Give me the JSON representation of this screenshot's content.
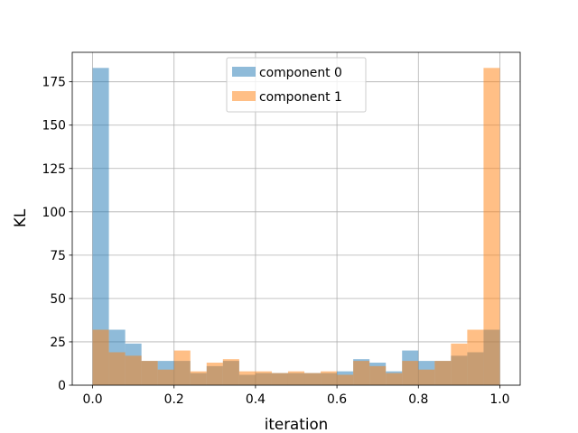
{
  "chart_data": {
    "type": "bar",
    "subtype": "histogram-overlay",
    "title": "",
    "xlabel": "iteration",
    "ylabel": "KL",
    "xlim": [
      -0.05,
      1.05
    ],
    "ylim": [
      0,
      192
    ],
    "grid": true,
    "legend_position": "top-center",
    "bin_edges": [
      0.0,
      0.04,
      0.08,
      0.12,
      0.16,
      0.2,
      0.24,
      0.28,
      0.32,
      0.36,
      0.4,
      0.44,
      0.48,
      0.52,
      0.56,
      0.6,
      0.64,
      0.68,
      0.72,
      0.76,
      0.8,
      0.84,
      0.88,
      0.92,
      0.96,
      1.0
    ],
    "series": [
      {
        "name": "component 0",
        "color": "#1f77b4",
        "values": [
          183,
          32,
          24,
          14,
          14,
          14,
          7,
          11,
          14,
          6,
          7,
          7,
          7,
          7,
          7,
          8,
          15,
          13,
          8,
          20,
          14,
          14,
          17,
          19,
          32
        ]
      },
      {
        "name": "component 1",
        "color": "#ff7f0e",
        "values": [
          32,
          19,
          17,
          14,
          9,
          20,
          8,
          13,
          15,
          8,
          8,
          7,
          8,
          7,
          8,
          6,
          14,
          11,
          7,
          14,
          9,
          14,
          24,
          32,
          183
        ]
      }
    ],
    "xticks": [
      0.0,
      0.2,
      0.4,
      0.6,
      0.8,
      1.0
    ],
    "xtick_labels": [
      "0.0",
      "0.2",
      "0.4",
      "0.6",
      "0.8",
      "1.0"
    ],
    "yticks": [
      0,
      25,
      50,
      75,
      100,
      125,
      150,
      175
    ],
    "ytick_labels": [
      "0",
      "25",
      "50",
      "75",
      "100",
      "125",
      "150",
      "175"
    ]
  }
}
